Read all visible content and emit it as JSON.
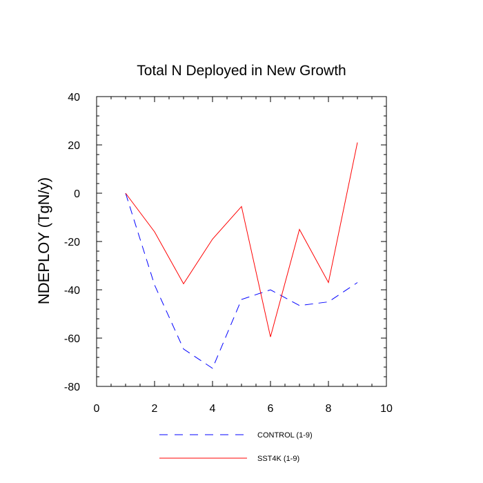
{
  "chart_data": {
    "type": "line",
    "title": "Total N Deployed in New Growth",
    "xlabel": "",
    "ylabel": "NDEPLOY  (TgN/y)",
    "xlim": [
      0,
      10
    ],
    "ylim": [
      -80,
      40
    ],
    "xticks": [
      0,
      2,
      4,
      6,
      8,
      10
    ],
    "yticks": [
      -80,
      -60,
      -40,
      -20,
      0,
      20,
      40
    ],
    "grid": false,
    "legend_position": "bottom",
    "series": [
      {
        "name": "CONTROL (1-9)",
        "color": "#0000ff",
        "style": "dashed",
        "x": [
          1,
          2,
          3,
          4,
          5,
          6,
          7,
          8,
          9
        ],
        "values": [
          0,
          -38,
          -64.5,
          -72.5,
          -44,
          -40,
          -46.5,
          -45,
          -37
        ]
      },
      {
        "name": "SST4K (1-9)",
        "color": "#ff0000",
        "style": "solid",
        "x": [
          1,
          2,
          3,
          4,
          5,
          6,
          7,
          8,
          9
        ],
        "values": [
          0,
          -16,
          -37.5,
          -19,
          -5.5,
          -59.5,
          -15,
          -37,
          21
        ]
      }
    ]
  }
}
